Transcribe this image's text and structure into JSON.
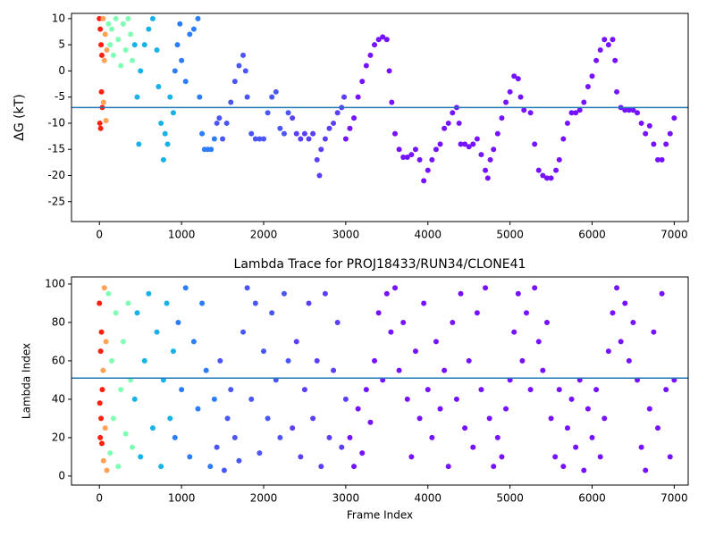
{
  "chart_data": [
    {
      "type": "scatter",
      "ylabel": "ΔG (kT)",
      "xlim": [
        -340,
        7170
      ],
      "ylim": [
        -28.8,
        11
      ],
      "xticks": [
        0,
        1000,
        2000,
        3000,
        4000,
        5000,
        6000,
        7000
      ],
      "yticks": [
        -25,
        -20,
        -15,
        -10,
        -5,
        0,
        5,
        10
      ],
      "hline": -7,
      "hline_color": "#1f77b4",
      "series": [
        {
          "color": "#ff1f10",
          "x": [
            0,
            5,
            10,
            15,
            20,
            25,
            30,
            35
          ],
          "values": [
            10,
            -10,
            8,
            -11,
            5,
            -4,
            3,
            -7
          ]
        },
        {
          "color": "#ffa256",
          "x": [
            45,
            50,
            60,
            70,
            80,
            90
          ],
          "values": [
            10,
            -6,
            2,
            7,
            -9.5,
            4
          ]
        },
        {
          "color": "#80ffb4",
          "x": [
            110,
            130,
            150,
            170,
            200,
            230,
            260,
            290,
            320,
            350,
            380,
            400
          ],
          "values": [
            9,
            5,
            8,
            3,
            10,
            6,
            1,
            9,
            4,
            10,
            7,
            2
          ]
        },
        {
          "color": "#18b2e8",
          "x": [
            430,
            460,
            480,
            500,
            550,
            600,
            650,
            700,
            720,
            750,
            780,
            800,
            830,
            860,
            900
          ],
          "values": [
            5,
            -5,
            -14,
            0,
            5,
            8,
            10,
            4,
            -3,
            -10,
            -17,
            -12,
            -14,
            -5,
            -8
          ]
        },
        {
          "color": "#2c7ef8",
          "x": [
            920,
            950,
            980,
            1000,
            1050,
            1100,
            1150,
            1200,
            1220,
            1250,
            1280,
            1320,
            1360,
            1400
          ],
          "values": [
            0,
            5,
            9,
            2,
            -2,
            7,
            8,
            10,
            -5,
            -12,
            -15,
            -15,
            -15,
            -13
          ]
        },
        {
          "color": "#4a56f6",
          "x": [
            1430,
            1460,
            1500,
            1550,
            1600,
            1650,
            1700,
            1750,
            1780,
            1800,
            1850,
            1900,
            1950,
            2000,
            2050,
            2100,
            2150,
            2200,
            2250,
            2300
          ],
          "values": [
            -10,
            -9,
            -13,
            -10,
            -6,
            -2,
            1,
            3,
            0,
            -5,
            -12,
            -13,
            -13,
            -13,
            -8,
            -5,
            -4,
            -11,
            -12,
            -8
          ]
        },
        {
          "color": "#5a3ff9",
          "x": [
            2350,
            2400,
            2450,
            2500,
            2550,
            2600,
            2650,
            2680,
            2700,
            2750,
            2800,
            2850,
            2900,
            2950,
            2980
          ],
          "values": [
            -9,
            -12,
            -13,
            -12,
            -13,
            -12,
            -17,
            -20,
            -15,
            -13,
            -11,
            -10,
            -8,
            -7,
            -5
          ]
        },
        {
          "color": "#7612ff",
          "x": [
            3000,
            3050,
            3100,
            3150,
            3200,
            3250,
            3300,
            3350,
            3400,
            3450,
            3500,
            3530,
            3560,
            3600,
            3650,
            3700,
            3750,
            3800,
            3850,
            3900,
            3950,
            4000,
            4050,
            4100,
            4150,
            4200,
            4250,
            4300,
            4350,
            4380,
            4400,
            4450,
            4500,
            4550,
            4600,
            4650,
            4700,
            4730,
            4760,
            4800,
            4850,
            4900,
            4950,
            5000,
            5050,
            5100,
            5130,
            5170,
            5250,
            5300,
            5350,
            5400,
            5450,
            5500,
            5560,
            5600,
            5650,
            5700,
            5750,
            5800,
            5850,
            5900,
            5950,
            6000,
            6050,
            6100,
            6150,
            6200,
            6250,
            6280,
            6300,
            6350,
            6400,
            6450,
            6500,
            6550,
            6600,
            6650,
            6700,
            6750,
            6800,
            6850,
            6900,
            6950,
            7000
          ],
          "values": [
            -13,
            -11,
            -9,
            -5,
            -2,
            1,
            3,
            5,
            6,
            6.5,
            6,
            0,
            -6,
            -12,
            -15,
            -16.5,
            -16.5,
            -16,
            -15,
            -17,
            -21,
            -19,
            -17,
            -15,
            -14,
            -11,
            -10,
            -8,
            -7,
            -10,
            -14,
            -14,
            -14.5,
            -14,
            -13,
            -16,
            -19,
            -20.5,
            -17,
            -15,
            -12,
            -9,
            -6,
            -4,
            -1,
            -1.5,
            -5,
            -7.5,
            -8,
            -14,
            -19,
            -20,
            -20.5,
            -20.5,
            -19,
            -17,
            -13,
            -10,
            -8,
            -8,
            -7.5,
            -6,
            -3,
            -1,
            2,
            4,
            6,
            5,
            6,
            2,
            -4,
            -7,
            -7.5,
            -7.5,
            -7.5,
            -8,
            -10,
            -12,
            -10.5,
            -14,
            -17,
            -17,
            -14,
            -12,
            -9
          ]
        }
      ]
    },
    {
      "type": "scatter",
      "title": "Lambda Trace for PROJ18433/RUN34/CLONE41",
      "xlabel": "Frame Index",
      "ylabel": "Lambda Index",
      "xlim": [
        -340,
        7170
      ],
      "ylim": [
        -4.7,
        103.7
      ],
      "xticks": [
        0,
        1000,
        2000,
        3000,
        4000,
        5000,
        6000,
        7000
      ],
      "yticks": [
        0,
        20,
        40,
        60,
        80,
        100
      ],
      "hline": 51,
      "hline_color": "#1f77b4",
      "series": [
        {
          "color": "#ff1f10",
          "x": [
            0,
            5,
            10,
            15,
            20,
            25,
            30,
            35
          ],
          "values": [
            90,
            38,
            20,
            65,
            30,
            75,
            17,
            45
          ]
        },
        {
          "color": "#ffa256",
          "x": [
            45,
            50,
            60,
            70,
            80,
            90
          ],
          "values": [
            55,
            8,
            98,
            25,
            70,
            3
          ]
        },
        {
          "color": "#80ffb4",
          "x": [
            110,
            130,
            150,
            170,
            200,
            230,
            260,
            290,
            320,
            350,
            380,
            400
          ],
          "values": [
            95,
            12,
            60,
            30,
            85,
            5,
            45,
            70,
            22,
            90,
            50,
            15
          ]
        },
        {
          "color": "#18b2e8",
          "x": [
            430,
            460,
            500,
            550,
            600,
            650,
            700,
            750,
            780,
            820,
            860,
            900
          ],
          "values": [
            40,
            85,
            10,
            60,
            95,
            25,
            75,
            5,
            50,
            90,
            30,
            65
          ]
        },
        {
          "color": "#2c7ef8",
          "x": [
            920,
            960,
            1000,
            1050,
            1100,
            1150,
            1200,
            1250,
            1300,
            1350,
            1400
          ],
          "values": [
            20,
            80,
            45,
            98,
            10,
            70,
            35,
            90,
            55,
            5,
            40
          ]
        },
        {
          "color": "#4a56f6",
          "x": [
            1430,
            1470,
            1520,
            1560,
            1600,
            1650,
            1700,
            1750,
            1800,
            1850,
            1900,
            1950,
            2000,
            2050,
            2100,
            2150,
            2200,
            2250,
            2300
          ],
          "values": [
            15,
            60,
            3,
            30,
            45,
            20,
            8,
            75,
            98,
            40,
            90,
            12,
            65,
            30,
            85,
            50,
            20,
            95,
            60
          ]
        },
        {
          "color": "#5a3ff9",
          "x": [
            2350,
            2400,
            2450,
            2500,
            2550,
            2600,
            2650,
            2700,
            2750,
            2800,
            2850,
            2900,
            2950,
            3000
          ],
          "values": [
            25,
            70,
            10,
            45,
            90,
            30,
            60,
            5,
            95,
            20,
            55,
            80,
            15,
            40
          ]
        },
        {
          "color": "#7612ff",
          "x": [
            3050,
            3100,
            3150,
            3200,
            3250,
            3300,
            3350,
            3400,
            3450,
            3500,
            3550,
            3600,
            3650,
            3700,
            3750,
            3800,
            3850,
            3900,
            3950,
            4000,
            4050,
            4100,
            4150,
            4200,
            4250,
            4300,
            4350,
            4400,
            4450,
            4500,
            4550,
            4600,
            4650,
            4700,
            4750,
            4800,
            4850,
            4900,
            4950,
            5000,
            5050,
            5100,
            5150,
            5200,
            5250,
            5300,
            5350,
            5400,
            5450,
            5500,
            5550,
            5600,
            5650,
            5700,
            5750,
            5800,
            5850,
            5900,
            5950,
            6000,
            6050,
            6100,
            6150,
            6200,
            6250,
            6300,
            6350,
            6400,
            6450,
            6500,
            6550,
            6600,
            6650,
            6700,
            6750,
            6800,
            6850,
            6900,
            6950,
            7000
          ],
          "values": [
            20,
            5,
            35,
            12,
            45,
            28,
            60,
            85,
            50,
            95,
            75,
            98,
            55,
            80,
            40,
            10,
            65,
            30,
            90,
            45,
            20,
            70,
            35,
            55,
            5,
            80,
            40,
            95,
            25,
            60,
            15,
            85,
            45,
            98,
            30,
            5,
            20,
            10,
            35,
            50,
            75,
            95,
            60,
            85,
            45,
            98,
            70,
            55,
            80,
            30,
            10,
            45,
            5,
            25,
            40,
            15,
            50,
            3,
            35,
            20,
            45,
            10,
            30,
            65,
            85,
            98,
            70,
            90,
            60,
            80,
            50,
            15,
            3,
            35,
            75,
            25,
            95,
            45,
            10,
            50
          ]
        }
      ]
    }
  ]
}
